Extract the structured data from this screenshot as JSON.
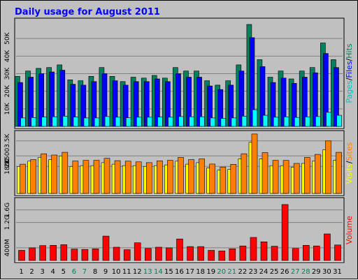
{
  "chart_data": {
    "type": "bar",
    "title": "Daily usage for August 2011",
    "categories": [
      "1",
      "2",
      "3",
      "4",
      "5",
      "6",
      "7",
      "8",
      "9",
      "10",
      "11",
      "12",
      "13",
      "14",
      "15",
      "16",
      "17",
      "18",
      "19",
      "20",
      "21",
      "22",
      "23",
      "24",
      "25",
      "26",
      "27",
      "28",
      "29",
      "30",
      "31"
    ],
    "weekend_days": [
      "6",
      "7",
      "13",
      "14",
      "20",
      "21",
      "27",
      "28"
    ],
    "panels": [
      {
        "name": "hits-files-pages",
        "legend": [
          "Pages",
          "Files",
          "Hits"
        ],
        "ylim": [
          0,
          60000
        ],
        "ticks": [
          {
            "value": 10000,
            "label": "10K"
          },
          {
            "value": 20000,
            "label": "20K"
          },
          {
            "value": 30000,
            "label": "30K"
          },
          {
            "value": 40000,
            "label": "40K"
          },
          {
            "value": 50000,
            "label": "50K"
          }
        ],
        "series": [
          {
            "name": "Hits",
            "color": "#00805c",
            "values": [
              28500,
              31500,
              33000,
              33500,
              35000,
              26500,
              26000,
              28500,
              33500,
              28500,
              25500,
              28000,
              27500,
              29000,
              27500,
              33500,
              31500,
              31500,
              26000,
              23500,
              26000,
              35000,
              58000,
              38000,
              28000,
              31500,
              27000,
              31500,
              33500,
              47500,
              38000
            ]
          },
          {
            "name": "Files",
            "color": "#0000ff",
            "values": [
              25000,
              28000,
              30000,
              31000,
              32000,
              24000,
              23500,
              25500,
              30000,
              26000,
              23500,
              25500,
              25500,
              27000,
              25500,
              30000,
              28000,
              28000,
              23000,
              21000,
              23500,
              31500,
              50500,
              34000,
              25000,
              27500,
              24500,
              28000,
              30500,
              41500,
              33500
            ]
          },
          {
            "name": "Pages",
            "color": "#00ffff",
            "values": [
              4800,
              5000,
              5300,
              5500,
              5800,
              5300,
              4800,
              4800,
              5600,
              5200,
              4900,
              5200,
              5200,
              5300,
              5200,
              5600,
              5500,
              5500,
              4800,
              4500,
              4800,
              5800,
              9500,
              6300,
              5200,
              5400,
              5100,
              5400,
              5600,
              8000,
              6300
            ]
          }
        ]
      },
      {
        "name": "visits-sites",
        "legend": [
          "Visits",
          "Sites"
        ],
        "ylim": [
          0,
          4000
        ],
        "ticks": [
          {
            "value": 1800,
            "label": "1800"
          },
          {
            "value": 2500,
            "label": "2500"
          },
          {
            "value": 3500,
            "label": "3.5K"
          }
        ],
        "tick_label_note": "2K",
        "series": [
          {
            "name": "Sites",
            "color": "#ffff00",
            "values": [
              1800,
              2150,
              2400,
              2250,
              2500,
              1800,
              1850,
              1850,
              2050,
              1950,
              1850,
              1850,
              1800,
              1850,
              1900,
              2150,
              1950,
              2050,
              1700,
              1550,
              1600,
              2300,
              3400,
              2300,
              1850,
              1850,
              1750,
              2000,
              2150,
              2900,
              2200
            ]
          },
          {
            "name": "Visits",
            "color": "#ff8000",
            "values": [
              1950,
              2250,
              2640,
              2560,
              2740,
              2160,
              2200,
              2200,
              2340,
              2180,
              2150,
              2100,
              2050,
              2170,
              2200,
              2400,
              2250,
              2300,
              1960,
              1760,
              1940,
              2640,
              3960,
              2720,
              2200,
              2200,
              2000,
              2400,
              2600,
              3500,
              2740
            ]
          }
        ]
      },
      {
        "name": "volume",
        "legend": [
          "Volume"
        ],
        "ylim": [
          0,
          1900
        ],
        "ticks": [
          {
            "value": 400,
            "label": "400M"
          },
          {
            "value": 1200,
            "label": "1.2G"
          },
          {
            "value": 1600,
            "label": "1.6G"
          }
        ],
        "series": [
          {
            "name": "Volume",
            "color": "#ff0000",
            "values": [
              320,
              400,
              470,
              480,
              500,
              360,
              350,
              370,
              770,
              420,
              340,
              560,
              380,
              420,
              400,
              680,
              440,
              440,
              320,
              300,
              370,
              460,
              730,
              590,
              450,
              1770,
              380,
              480,
              460,
              840,
              490
            ]
          }
        ]
      }
    ],
    "grid": true
  }
}
